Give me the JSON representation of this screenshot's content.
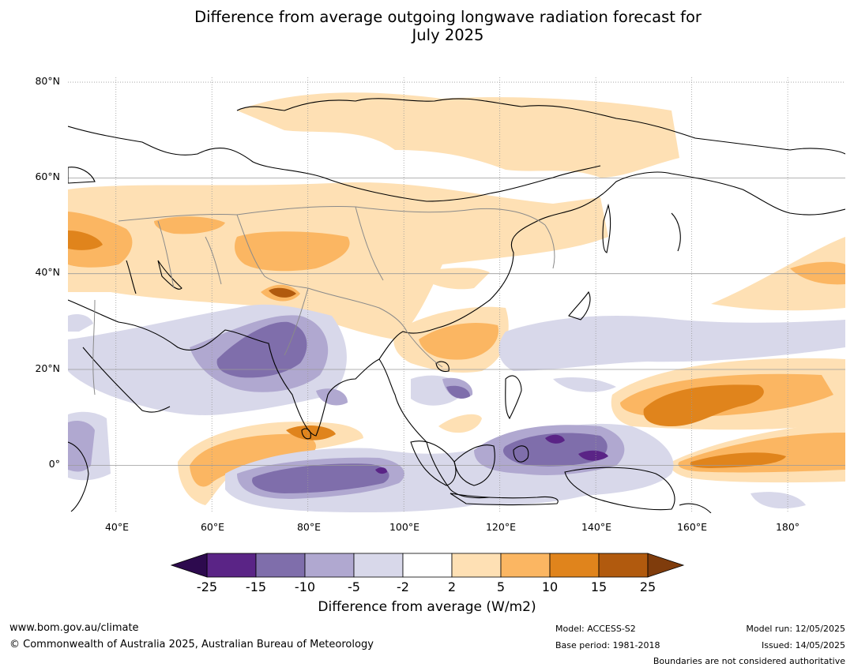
{
  "title": {
    "line1": "Difference from average outgoing longwave radiation forecast for",
    "line2": "July 2025"
  },
  "map": {
    "lat_labels": [
      "80°N",
      "60°N",
      "40°N",
      "20°N",
      "0°"
    ],
    "lon_labels": [
      "40°E",
      "60°E",
      "80°E",
      "100°E",
      "120°E",
      "140°E",
      "160°E",
      "180°"
    ],
    "extent": {
      "lon_min": 30,
      "lon_max": 192,
      "lat_min": -10,
      "lat_max": 81
    }
  },
  "colorbar": {
    "ticks": [
      "-25",
      "-15",
      "-10",
      "-5",
      "-2",
      "2",
      "5",
      "10",
      "15",
      "25"
    ],
    "colors": [
      "#5a2486",
      "#7f6eab",
      "#b0a8d0",
      "#d8d8ea",
      "#ffffff",
      "#fee0b4",
      "#fbb662",
      "#e0841c",
      "#b15a0e"
    ],
    "under_color": "#2d0a4e",
    "over_color": "#7f3c0c",
    "label": "Difference from average (W/m2)"
  },
  "footer": {
    "website": "www.bom.gov.au/climate",
    "copyright": "© Commonwealth of Australia 2025, Australian Bureau of Meteorology",
    "model": "Model: ACCESS-S2",
    "base_period": "Base period: 1981-2018",
    "model_run": "Model run: 12/05/2025",
    "issued": "Issued: 14/05/2025",
    "disclaimer": "Boundaries are not considered authoritative"
  }
}
